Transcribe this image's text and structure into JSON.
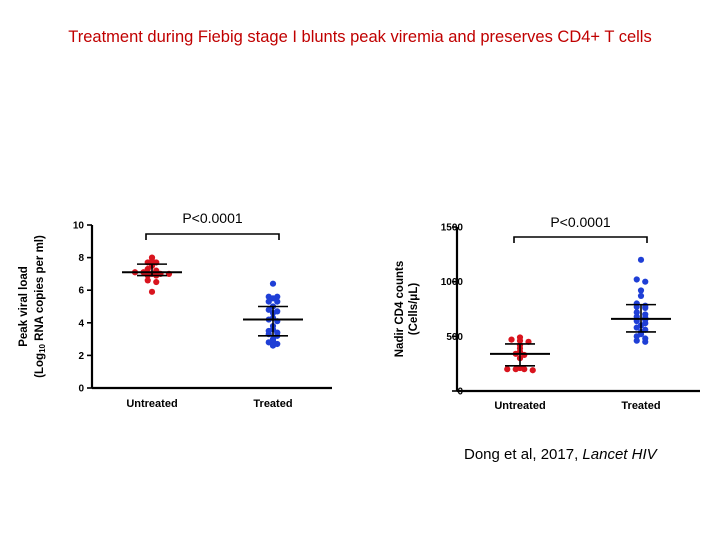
{
  "slide": {
    "title": "Treatment during Fiebig stage I blunts peak viremia and preserves CD4+ T cells",
    "title_color": "#c00000",
    "citation_prefix": "Dong et al, 2017, ",
    "citation_journal": "Lancet HIV"
  },
  "colors": {
    "untreated": "#d9141e",
    "treated": "#1f3fd6",
    "axis": "#000000"
  },
  "chart_data": [
    {
      "type": "scatter",
      "ylabel_line1": "Peak viral load",
      "ylabel_line2_pre": "(Log",
      "ylabel_line2_sub": "10",
      "ylabel_line2_post": " RNA copies per ml)",
      "categories": [
        "Untreated",
        "Treated"
      ],
      "ylim": [
        0,
        10
      ],
      "yticks": [
        0,
        2,
        4,
        6,
        8,
        10
      ],
      "pvalue": "P<0.0001",
      "series": [
        {
          "name": "Untreated",
          "color_key": "untreated",
          "values": [
            8.0,
            7.8,
            7.7,
            7.7,
            7.5,
            7.3,
            7.2,
            7.1,
            7.1,
            7.0,
            7.0,
            7.0,
            6.9,
            6.9,
            6.6,
            6.5,
            5.9
          ],
          "median": 7.1,
          "iqr": [
            6.9,
            7.6
          ]
        },
        {
          "name": "Treated",
          "color_key": "treated",
          "values": [
            6.4,
            5.6,
            5.6,
            5.5,
            5.3,
            5.3,
            5.0,
            4.8,
            4.7,
            4.6,
            4.3,
            4.2,
            4.1,
            3.8,
            3.6,
            3.5,
            3.4,
            3.3,
            3.2,
            3.0,
            2.9,
            2.8,
            2.7,
            2.6
          ],
          "median": 4.2,
          "iqr": [
            3.2,
            5.0
          ]
        }
      ]
    },
    {
      "type": "scatter",
      "ylabel_line1": "Nadir CD4 counts",
      "ylabel_line2_pre": "(Cells/",
      "ylabel_line2_sub": "",
      "ylabel_line2_post": "μL)",
      "categories": [
        "Untreated",
        "Treated"
      ],
      "ylim": [
        0,
        1500
      ],
      "yticks": [
        0,
        500,
        1000,
        1500
      ],
      "pvalue": "P<0.0001",
      "series": [
        {
          "name": "Untreated",
          "color_key": "untreated",
          "values": [
            490,
            470,
            460,
            450,
            420,
            390,
            360,
            340,
            330,
            300,
            210,
            200,
            200,
            200,
            190
          ],
          "median": 340,
          "iqr": [
            230,
            430
          ]
        },
        {
          "name": "Treated",
          "color_key": "treated",
          "values": [
            1200,
            1020,
            1000,
            920,
            870,
            800,
            780,
            770,
            760,
            720,
            700,
            680,
            670,
            660,
            650,
            640,
            620,
            600,
            580,
            560,
            540,
            520,
            500,
            480,
            460,
            450
          ],
          "median": 660,
          "iqr": [
            540,
            790
          ]
        }
      ]
    }
  ]
}
